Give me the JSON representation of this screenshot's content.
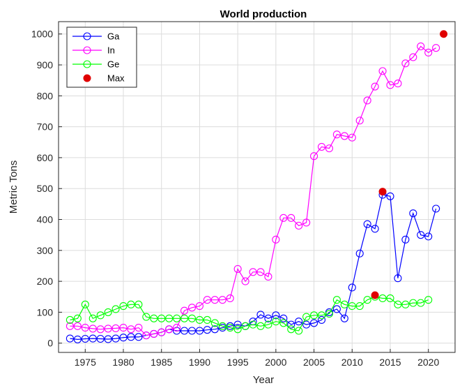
{
  "chart_data": {
    "type": "line",
    "title": "World production",
    "xlabel": "Year",
    "ylabel": "Metric Tons",
    "xlim": [
      1971.5,
      2023.5
    ],
    "ylim": [
      -30,
      1040
    ],
    "grid": true,
    "legend_position": "top-left",
    "x_ticks": [
      1975,
      1980,
      1985,
      1990,
      1995,
      2000,
      2005,
      2010,
      2015,
      2020
    ],
    "x_tick_labels": [
      "1975",
      "1980",
      "1985",
      "1990",
      "1995",
      "2000",
      "2005",
      "2010",
      "2015",
      "2020"
    ],
    "y_ticks": [
      0,
      100,
      200,
      300,
      400,
      500,
      600,
      700,
      800,
      900,
      1000
    ],
    "y_tick_labels": [
      "0",
      "100",
      "200",
      "300",
      "400",
      "500",
      "600",
      "700",
      "800",
      "900",
      "1000"
    ],
    "series": [
      {
        "name": "Ga",
        "color": "#0000ff",
        "marker": "open-circle",
        "x": [
          1973,
          1974,
          1975,
          1976,
          1977,
          1978,
          1979,
          1980,
          1981,
          1982,
          1983,
          1984,
          1985,
          1986,
          1987,
          1988,
          1989,
          1990,
          1991,
          1992,
          1993,
          1994,
          1995,
          1996,
          1997,
          1998,
          1999,
          2000,
          2001,
          2002,
          2003,
          2004,
          2005,
          2006,
          2007,
          2008,
          2009,
          2010,
          2011,
          2012,
          2013,
          2014,
          2015,
          2016,
          2017,
          2018,
          2019,
          2020,
          2021
        ],
        "y": [
          15,
          12,
          14,
          15,
          14,
          13,
          15,
          18,
          20,
          20,
          25,
          30,
          35,
          45,
          40,
          40,
          40,
          40,
          43,
          45,
          50,
          55,
          60,
          55,
          70,
          92,
          80,
          90,
          80,
          60,
          70,
          60,
          65,
          75,
          100,
          110,
          80,
          180,
          290,
          385,
          370,
          480,
          475,
          210,
          335,
          420,
          350,
          345,
          435
        ]
      },
      {
        "name": "In",
        "color": "#ff00ff",
        "marker": "open-circle",
        "x": [
          1973,
          1974,
          1975,
          1976,
          1977,
          1978,
          1979,
          1980,
          1981,
          1982,
          1983,
          1984,
          1985,
          1986,
          1987,
          1988,
          1989,
          1990,
          1991,
          1992,
          1993,
          1994,
          1995,
          1996,
          1997,
          1998,
          1999,
          2000,
          2001,
          2002,
          2003,
          2004,
          2005,
          2006,
          2007,
          2008,
          2009,
          2010,
          2011,
          2012,
          2013,
          2014,
          2015,
          2016,
          2017,
          2018,
          2019,
          2020,
          2021
        ],
        "y": [
          55,
          55,
          50,
          47,
          45,
          47,
          48,
          50,
          45,
          50,
          25,
          30,
          35,
          45,
          50,
          105,
          115,
          120,
          140,
          140,
          140,
          145,
          240,
          200,
          230,
          230,
          215,
          335,
          405,
          405,
          380,
          390,
          605,
          635,
          630,
          675,
          670,
          665,
          720,
          785,
          830,
          880,
          835,
          840,
          905,
          925,
          960,
          940,
          955
        ]
      },
      {
        "name": "Ge",
        "color": "#00ff00",
        "marker": "open-circle",
        "x": [
          1973,
          1974,
          1975,
          1976,
          1977,
          1978,
          1979,
          1980,
          1981,
          1982,
          1983,
          1984,
          1985,
          1986,
          1987,
          1988,
          1989,
          1990,
          1991,
          1992,
          1993,
          1994,
          1995,
          1996,
          1997,
          1998,
          1999,
          2000,
          2001,
          2002,
          2003,
          2004,
          2005,
          2006,
          2007,
          2008,
          2009,
          2010,
          2011,
          2012,
          2013,
          2014,
          2015,
          2016,
          2017,
          2018,
          2019,
          2020
        ],
        "y": [
          75,
          80,
          125,
          80,
          90,
          100,
          110,
          120,
          125,
          125,
          85,
          80,
          80,
          80,
          80,
          80,
          80,
          75,
          75,
          65,
          55,
          50,
          45,
          55,
          60,
          55,
          60,
          70,
          65,
          45,
          40,
          85,
          90,
          90,
          95,
          140,
          125,
          120,
          120,
          140,
          150,
          145,
          145,
          125,
          125,
          130,
          130,
          140
        ]
      },
      {
        "name": "Max",
        "color": "#e00000",
        "marker": "filled-dot",
        "x": [
          2013,
          2014,
          2022
        ],
        "y": [
          155,
          490,
          1000
        ]
      }
    ]
  }
}
